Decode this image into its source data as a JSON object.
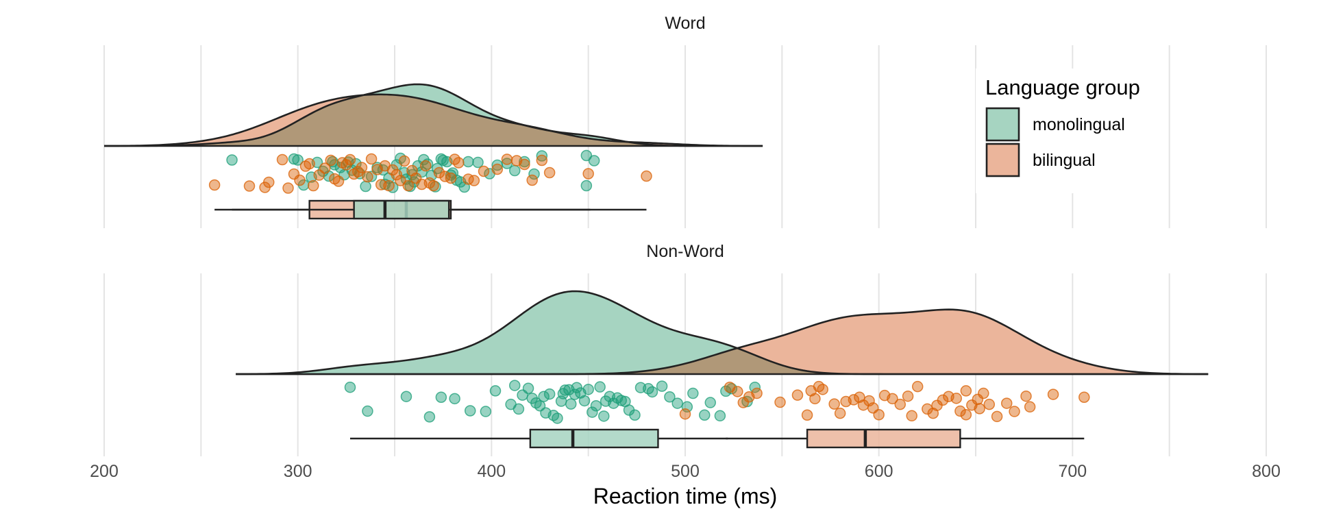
{
  "chart_data": {
    "type": "raincloud",
    "xlabel": "Reaction time (ms)",
    "xlim": [
      200,
      800
    ],
    "xticks": [
      200,
      300,
      400,
      500,
      600,
      700,
      800
    ],
    "grid": true,
    "legend": {
      "title": "Language group",
      "position": "top-right",
      "entries": [
        {
          "key": "monolingual",
          "label": "monolingual",
          "color": "#1b9e77"
        },
        {
          "key": "bilingual",
          "label": "bilingual",
          "color": "#d95f02"
        }
      ]
    },
    "colors": {
      "monolingual": {
        "point": "#1b9e77",
        "fill": "#a6d4c1"
      },
      "bilingual": {
        "point": "#d95f02",
        "fill": "#ebb59b"
      },
      "overlap": "#b09878",
      "line": "#222222"
    },
    "panels": [
      {
        "title": "Word",
        "density_range": [
          200,
          540
        ],
        "series": [
          {
            "group": "monolingual",
            "box": {
              "min": 266,
              "q1": 329,
              "median": 345,
              "q3": 378,
              "max": 451
            },
            "points": [
              [
                266,
                0.15
              ],
              [
                298,
                0.12
              ],
              [
                300,
                0.15
              ],
              [
                303,
                0.88
              ],
              [
                307,
                0.65
              ],
              [
                310,
                0.22
              ],
              [
                313,
                0.48
              ],
              [
                316,
                0.62
              ],
              [
                318,
                0.2
              ],
              [
                319,
                0.29
              ],
              [
                322,
                0.37
              ],
              [
                324,
                0.58
              ],
              [
                326,
                0.21
              ],
              [
                328,
                0.45
              ],
              [
                330,
                0.26
              ],
              [
                332,
                0.55
              ],
              [
                335,
                0.92
              ],
              [
                338,
                0.63
              ],
              [
                341,
                0.37
              ],
              [
                344,
                0.44
              ],
              [
                345,
                0.86
              ],
              [
                347,
                0.68
              ],
              [
                349,
                0.95
              ],
              [
                351,
                0.29
              ],
              [
                353,
                0.1
              ],
              [
                355,
                0.52
              ],
              [
                356,
                0.71
              ],
              [
                358,
                0.92
              ],
              [
                359,
                0.58
              ],
              [
                360,
                0.79
              ],
              [
                362,
                0.32
              ],
              [
                364,
                0.5
              ],
              [
                365,
                0.14
              ],
              [
                367,
                0.27
              ],
              [
                369,
                0.6
              ],
              [
                371,
                0.93
              ],
              [
                372,
                0.4
              ],
              [
                374,
                0.12
              ],
              [
                375,
                0.16
              ],
              [
                377,
                0.2
              ],
              [
                379,
                0.59
              ],
              [
                380,
                0.53
              ],
              [
                382,
                0.74
              ],
              [
                384,
                0.79
              ],
              [
                386,
                0.94
              ],
              [
                388,
                0.2
              ],
              [
                393,
                0.22
              ],
              [
                399,
                0.55
              ],
              [
                403,
                0.3
              ],
              [
                408,
                0.25
              ],
              [
                412,
                0.46
              ],
              [
                417,
                0.2
              ],
              [
                422,
                0.56
              ],
              [
                426,
                0.03
              ],
              [
                453,
                0.17
              ],
              [
                449,
                0.02
              ],
              [
                449,
                0.9
              ]
            ]
          },
          {
            "group": "bilingual",
            "box": {
              "min": 257,
              "q1": 306,
              "median": 356,
              "q3": 379,
              "max": 480
            },
            "points": [
              [
                257,
                0.88
              ],
              [
                275,
                0.91
              ],
              [
                283,
                0.95
              ],
              [
                285,
                0.8
              ],
              [
                292,
                0.14
              ],
              [
                295,
                0.97
              ],
              [
                298,
                0.56
              ],
              [
                301,
                0.74
              ],
              [
                304,
                0.33
              ],
              [
                306,
                0.26
              ],
              [
                308,
                0.9
              ],
              [
                311,
                0.59
              ],
              [
                314,
                0.39
              ],
              [
                317,
                0.16
              ],
              [
                319,
                0.7
              ],
              [
                321,
                0.77
              ],
              [
                323,
                0.23
              ],
              [
                325,
                0.29
              ],
              [
                327,
                0.14
              ],
              [
                329,
                0.56
              ],
              [
                331,
                0.49
              ],
              [
                333,
                0.37
              ],
              [
                336,
                0.64
              ],
              [
                338,
                0.12
              ],
              [
                341,
                0.43
              ],
              [
                343,
                0.87
              ],
              [
                345,
                0.32
              ],
              [
                347,
                0.9
              ],
              [
                349,
                0.44
              ],
              [
                351,
                0.58
              ],
              [
                353,
                0.75
              ],
              [
                355,
                0.18
              ],
              [
                357,
                0.9
              ],
              [
                359,
                0.46
              ],
              [
                361,
                0.68
              ],
              [
                364,
                0.86
              ],
              [
                366,
                0.32
              ],
              [
                368,
                0.82
              ],
              [
                370,
                0.9
              ],
              [
                373,
                0.52
              ],
              [
                376,
                0.63
              ],
              [
                379,
                0.68
              ],
              [
                381,
                0.13
              ],
              [
                383,
                0.23
              ],
              [
                388,
                0.71
              ],
              [
                391,
                0.75
              ],
              [
                396,
                0.48
              ],
              [
                403,
                0.42
              ],
              [
                408,
                0.13
              ],
              [
                413,
                0.17
              ],
              [
                417,
                0.28
              ],
              [
                421,
                0.74
              ],
              [
                426,
                0.16
              ],
              [
                430,
                0.52
              ],
              [
                450,
                0.55
              ],
              [
                480,
                0.62
              ]
            ]
          }
        ]
      },
      {
        "title": "Non-Word",
        "density_range": [
          268,
          770
        ],
        "series": [
          {
            "group": "monolingual",
            "box": {
              "min": 327,
              "q1": 420,
              "median": 442,
              "q3": 486,
              "max": 522
            },
            "points": [
              [
                327,
                0.1
              ],
              [
                336,
                0.77
              ],
              [
                356,
                0.36
              ],
              [
                368,
                0.93
              ],
              [
                374,
                0.38
              ],
              [
                381,
                0.42
              ],
              [
                389,
                0.76
              ],
              [
                397,
                0.78
              ],
              [
                402,
                0.2
              ],
              [
                410,
                0.58
              ],
              [
                412,
                0.05
              ],
              [
                414,
                0.71
              ],
              [
                416,
                0.32
              ],
              [
                419,
                0.13
              ],
              [
                421,
                0.41
              ],
              [
                423,
                0.54
              ],
              [
                425,
                0.62
              ],
              [
                427,
                0.36
              ],
              [
                428,
                0.82
              ],
              [
                430,
                0.29
              ],
              [
                432,
                0.89
              ],
              [
                434,
                0.97
              ],
              [
                436,
                0.49
              ],
              [
                437,
                0.28
              ],
              [
                438,
                0.18
              ],
              [
                440,
                0.17
              ],
              [
                441,
                0.57
              ],
              [
                443,
                0.3
              ],
              [
                444,
                0.11
              ],
              [
                446,
                0.26
              ],
              [
                448,
                0.48
              ],
              [
                450,
                0.16
              ],
              [
                452,
                0.8
              ],
              [
                454,
                0.62
              ],
              [
                456,
                0.09
              ],
              [
                458,
                0.91
              ],
              [
                459,
                0.49
              ],
              [
                461,
                0.36
              ],
              [
                463,
                0.55
              ],
              [
                465,
                0.4
              ],
              [
                467,
                0.47
              ],
              [
                469,
                0.5
              ],
              [
                471,
                0.74
              ],
              [
                474,
                0.88
              ],
              [
                477,
                0.11
              ],
              [
                481,
                0.14
              ],
              [
                483,
                0.23
              ],
              [
                488,
                0.07
              ],
              [
                492,
                0.37
              ],
              [
                496,
                0.55
              ],
              [
                501,
                0.65
              ],
              [
                504,
                0.27
              ],
              [
                510,
                0.88
              ],
              [
                513,
                0.53
              ],
              [
                518,
                0.9
              ],
              [
                521,
                0.21
              ],
              [
                524,
                0.14
              ],
              [
                532,
                0.5
              ],
              [
                536,
                0.1
              ]
            ]
          },
          {
            "group": "bilingual",
            "box": {
              "min": 521,
              "q1": 563,
              "median": 593,
              "q3": 642,
              "max": 706
            },
            "points": [
              [
                500,
                0.85
              ],
              [
                523,
                0.1
              ],
              [
                527,
                0.22
              ],
              [
                530,
                0.53
              ],
              [
                533,
                0.37
              ],
              [
                537,
                0.27
              ],
              [
                549,
                0.52
              ],
              [
                558,
                0.32
              ],
              [
                563,
                0.88
              ],
              [
                565,
                0.2
              ],
              [
                567,
                0.42
              ],
              [
                569,
                0.08
              ],
              [
                571,
                0.16
              ],
              [
                577,
                0.57
              ],
              [
                580,
                0.83
              ],
              [
                583,
                0.5
              ],
              [
                587,
                0.45
              ],
              [
                590,
                0.38
              ],
              [
                592,
                0.6
              ],
              [
                595,
                0.48
              ],
              [
                597,
                0.68
              ],
              [
                600,
                0.87
              ],
              [
                603,
                0.33
              ],
              [
                607,
                0.42
              ],
              [
                611,
                0.58
              ],
              [
                615,
                0.35
              ],
              [
                617,
                0.9
              ],
              [
                620,
                0.08
              ],
              [
                625,
                0.71
              ],
              [
                628,
                0.83
              ],
              [
                630,
                0.61
              ],
              [
                633,
                0.46
              ],
              [
                636,
                0.36
              ],
              [
                640,
                0.41
              ],
              [
                642,
                0.77
              ],
              [
                645,
                0.87
              ],
              [
                648,
                0.6
              ],
              [
                651,
                0.44
              ],
              [
                654,
                0.27
              ],
              [
                657,
                0.58
              ],
              [
                661,
                0.92
              ],
              [
                666,
                0.55
              ],
              [
                670,
                0.78
              ],
              [
                676,
                0.35
              ],
              [
                690,
                0.3
              ],
              [
                706,
                0.38
              ],
              [
                678,
                0.65
              ],
              [
                652,
                0.7
              ],
              [
                645,
                0.2
              ]
            ]
          }
        ]
      }
    ]
  }
}
